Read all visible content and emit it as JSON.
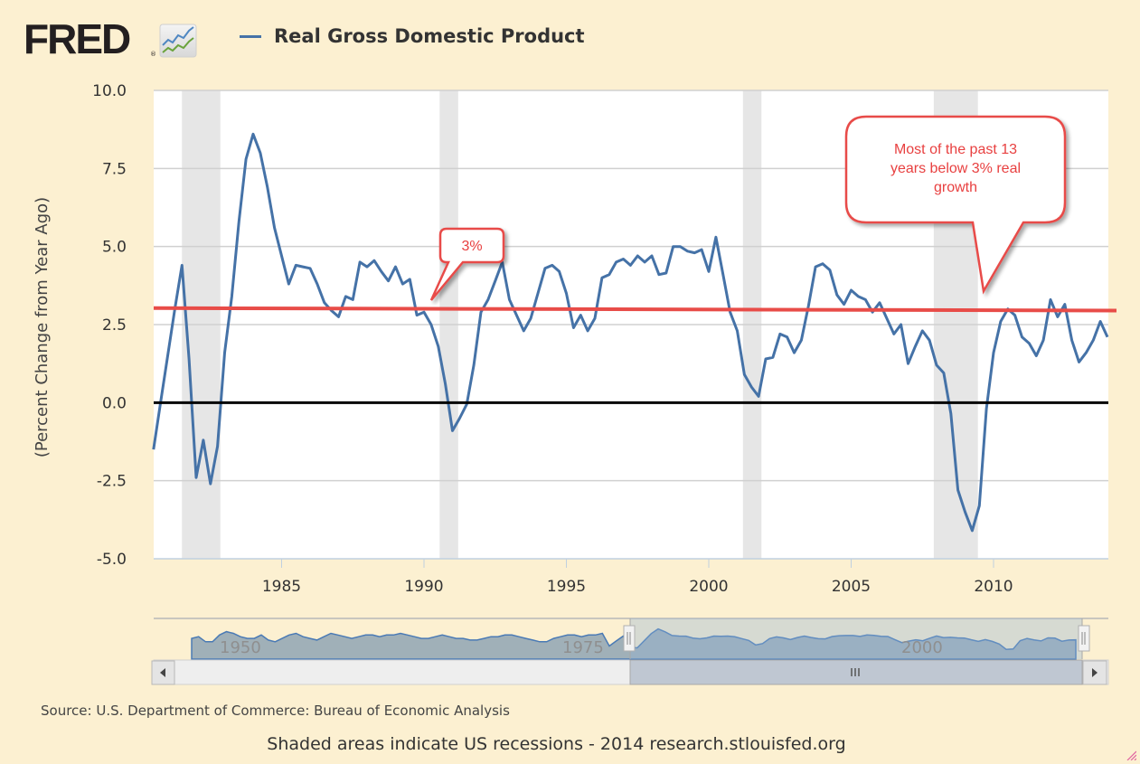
{
  "header": {
    "logo_text": "FRED",
    "logo_reg": "®",
    "logo_icon": "chart-line-icon",
    "legend_label": "Real Gross Domestic Product",
    "legend_color": "#4572a7"
  },
  "chart_data": {
    "type": "line",
    "title": "Real Gross Domestic Product",
    "xlabel": "",
    "ylabel": "(Percent Change from Year Ago)",
    "ylim": [
      -5.0,
      10.0
    ],
    "xlim": [
      1980.5,
      2014.05
    ],
    "yticks": [
      "10.0",
      "7.5",
      "5.0",
      "2.5",
      "0.0",
      "-2.5",
      "-5.0"
    ],
    "ytick_values": [
      10.0,
      7.5,
      5.0,
      2.5,
      0.0,
      -2.5,
      -5.0
    ],
    "xticks": [
      "1985",
      "1990",
      "1995",
      "2000",
      "2005",
      "2010"
    ],
    "xtick_values": [
      1985,
      1990,
      1995,
      2000,
      2005,
      2010
    ],
    "grid": true,
    "legend_position": "top",
    "series": [
      {
        "name": "Real Gross Domestic Product",
        "color": "#4572a7",
        "start": 1980.5,
        "step": 0.25,
        "values": [
          -1.5,
          0.0,
          1.5,
          3.0,
          4.4,
          1.4,
          -2.4,
          -1.2,
          -2.6,
          -1.4,
          1.6,
          3.4,
          5.8,
          7.8,
          8.6,
          8.0,
          6.9,
          5.6,
          4.7,
          3.8,
          4.4,
          4.35,
          4.3,
          3.8,
          3.2,
          2.95,
          2.75,
          3.4,
          3.3,
          4.5,
          4.35,
          4.55,
          4.2,
          3.9,
          4.35,
          3.8,
          3.95,
          2.8,
          2.9,
          2.5,
          1.8,
          0.6,
          -0.9,
          -0.5,
          -0.05,
          1.2,
          2.9,
          3.3,
          3.9,
          4.5,
          3.3,
          2.8,
          2.3,
          2.7,
          3.5,
          4.3,
          4.4,
          4.2,
          3.5,
          2.4,
          2.8,
          2.3,
          2.7,
          4.0,
          4.1,
          4.5,
          4.6,
          4.4,
          4.7,
          4.5,
          4.7,
          4.1,
          4.15,
          5.0,
          5.0,
          4.85,
          4.8,
          4.9,
          4.2,
          5.3,
          4.1,
          2.9,
          2.3,
          0.9,
          0.5,
          0.2,
          1.4,
          1.45,
          2.2,
          2.1,
          1.6,
          2.0,
          3.1,
          4.35,
          4.45,
          4.25,
          3.45,
          3.15,
          3.6,
          3.4,
          3.3,
          2.9,
          3.2,
          2.7,
          2.2,
          2.5,
          1.25,
          1.8,
          2.3,
          2.0,
          1.2,
          0.95,
          -0.35,
          -2.8,
          -3.5,
          -4.1,
          -3.3,
          -0.2,
          1.6,
          2.6,
          3.0,
          2.8,
          2.1,
          1.9,
          1.5,
          2.0,
          3.3,
          2.75,
          3.15,
          2.0,
          1.3,
          1.6,
          2.0,
          2.6,
          2.1
        ]
      }
    ],
    "recessions": [
      {
        "start": 1981.5,
        "end": 1982.85
      },
      {
        "start": 1990.55,
        "end": 1991.2
      },
      {
        "start": 2001.2,
        "end": 2001.85
      },
      {
        "start": 2007.9,
        "end": 2009.45
      }
    ],
    "reference_lines": [
      {
        "value": 0.0,
        "color": "#000000"
      },
      {
        "value": 3.0,
        "color": "#e84c48",
        "label": "3%",
        "slightly_tilted_to": 2.95
      }
    ],
    "annotations": [
      {
        "text": "3%",
        "target_year": 1990.1,
        "target_value": 3.2
      },
      {
        "text_lines": [
          "Most of the past 13",
          "years below 3% real",
          "growth"
        ],
        "target_year": 2009.4,
        "target_value": 3.6
      }
    ]
  },
  "navigator": {
    "labels": [
      "1950",
      "1975",
      "2000"
    ],
    "selected_range": [
      "1980",
      "2014"
    ],
    "left_arrow": "arrow-left-icon",
    "right_arrow": "arrow-right-icon",
    "thumb_grip": "III",
    "handle_grip": "||"
  },
  "footer": {
    "source": "Source: U.S. Department of Commerce: Bureau of Economic Analysis",
    "note": "Shaded areas indicate US recessions - 2014 research.stlouisfed.org"
  }
}
